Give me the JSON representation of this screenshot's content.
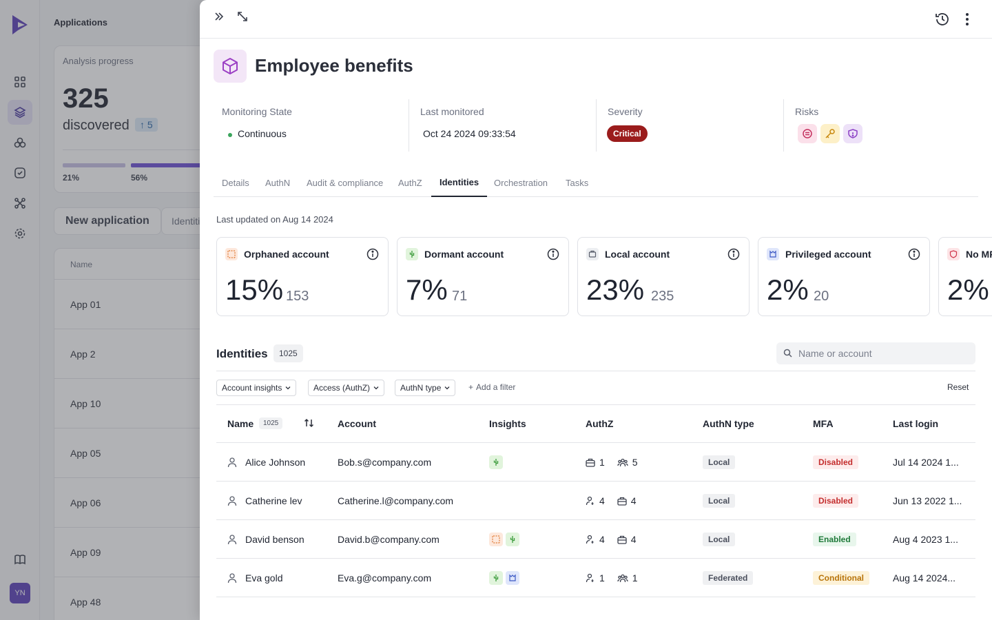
{
  "background": {
    "title": "Applications",
    "analysis_label": "Analysis progress",
    "discovered_count": "325",
    "discovered_label": "discovered",
    "discovered_delta": "5",
    "progress_a": "21%",
    "progress_b": "56%",
    "new_app_button": "New application",
    "identities_button": "Identiti",
    "table_header": "Name",
    "apps": [
      "App 01",
      "App 2",
      "App 10",
      "App 05",
      "App 06",
      "App 09",
      "App 48"
    ],
    "avatar_initials": "YN"
  },
  "drawer": {
    "title": "Employee benefits",
    "meta": {
      "monitoring_label": "Monitoring State",
      "monitoring_value": "Continuous",
      "last_monitored_label": "Last monitored",
      "last_monitored_value": "Oct 24 2024 09:33:54",
      "severity_label": "Severity",
      "severity_value": "Critical",
      "risks_label": "Risks"
    },
    "tabs": [
      "Details",
      "AuthN",
      "Audit & compliance",
      "AuthZ",
      "Identities",
      "Orchestration",
      "Tasks"
    ],
    "active_tab": "Identities",
    "last_updated": "Last updated on Aug 14 2024",
    "kpis": [
      {
        "title": "Orphaned account",
        "pct": "15%",
        "count": "153"
      },
      {
        "title": "Dormant account",
        "pct": "7%",
        "count": "71"
      },
      {
        "title": "Local account",
        "pct": "23%",
        "count": "235"
      },
      {
        "title": "Privileged account",
        "pct": "2%",
        "count": "20"
      },
      {
        "title": "No MFA",
        "pct": "2%",
        "count": ""
      }
    ],
    "identities": {
      "title": "Identities",
      "count": "1025",
      "search_placeholder": "Name or account",
      "filters": [
        "Account insights",
        "Access (AuthZ)",
        "AuthN type"
      ],
      "add_filter": "Add a filter",
      "reset": "Reset",
      "columns": {
        "name": "Name",
        "name_count": "1025",
        "account": "Account",
        "insights": "Insights",
        "authz": "AuthZ",
        "authn": "AuthN type",
        "mfa": "MFA",
        "last_login": "Last login"
      },
      "rows": [
        {
          "name": "Alice Johnson",
          "account": "Bob.s@company.com",
          "authz_a": "1",
          "authz_b": "5",
          "authn": "Local",
          "mfa": "Disabled",
          "last_login": "Jul 14 2024 1..."
        },
        {
          "name": "Catherine lev",
          "account": "Catherine.l@company.com",
          "authz_a": "4",
          "authz_b": "4",
          "authn": "Local",
          "mfa": "Disabled",
          "last_login": "Jun 13 2022 1..."
        },
        {
          "name": "David benson",
          "account": "David.b@company.com",
          "authz_a": "4",
          "authz_b": "4",
          "authn": "Local",
          "mfa": "Enabled",
          "last_login": "Aug 4 2023 1..."
        },
        {
          "name": "Eva gold",
          "account": "Eva.g@company.com",
          "authz_a": "1",
          "authz_b": "1",
          "authn": "Federated",
          "mfa": "Conditional",
          "last_login": "Aug 14 2024..."
        }
      ]
    }
  },
  "colors": {
    "brand": "#5b3fb8",
    "critical": "#9b1c1c",
    "disabled": "#c42e2e",
    "enabled": "#1f7a3a",
    "conditional": "#b8740a"
  }
}
